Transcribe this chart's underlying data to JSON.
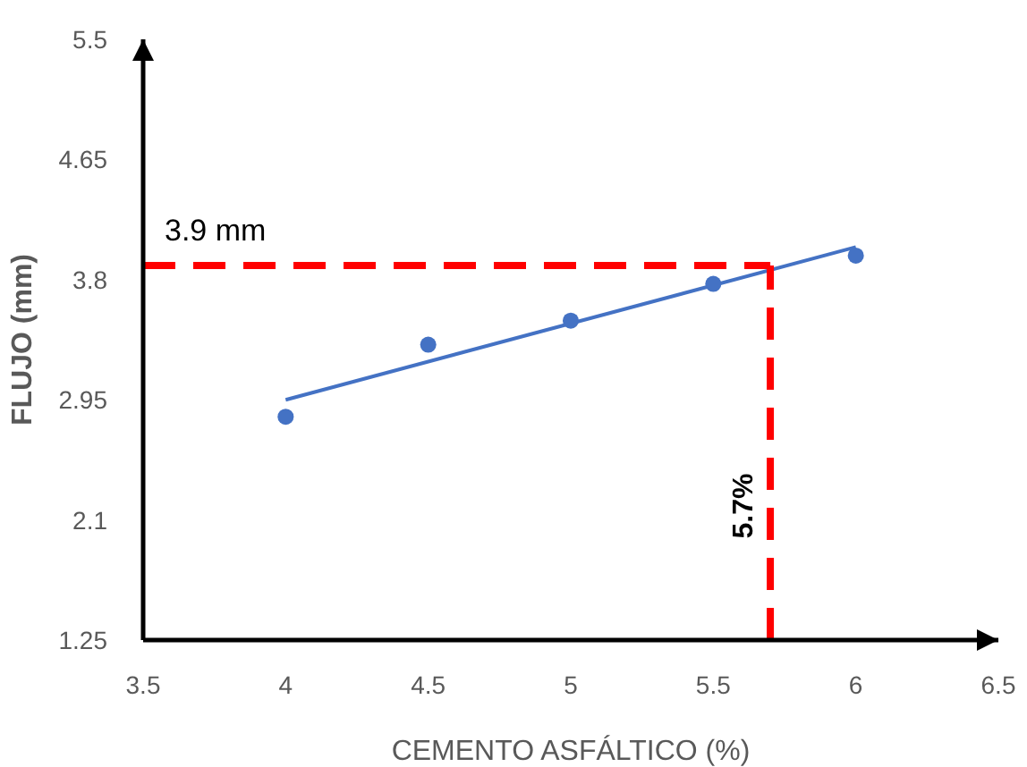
{
  "chart_data": {
    "type": "scatter",
    "xlabel": "CEMENTO ASFÁLTICO (%)",
    "ylabel": "FLUJO (mm)",
    "x": [
      4,
      4.5,
      5,
      5.5,
      6
    ],
    "series": [
      {
        "color": "#4472c4",
        "values": [
          2.83,
          3.34,
          3.51,
          3.77,
          3.97
        ]
      },
      {
        "type": "line",
        "marker": "none",
        "color": "#4472c4",
        "x": [
          4,
          6
        ],
        "values": [
          2.95,
          4.03
        ]
      }
    ],
    "xlim": [
      3.5,
      6.5
    ],
    "xticks": [
      3.5,
      4,
      4.5,
      5,
      5.5,
      6,
      6.5
    ],
    "ylim": [
      1.25,
      5.5
    ],
    "yticks": [
      1.25,
      2.1,
      2.95,
      3.8,
      4.65,
      5.5
    ],
    "ref_lines": [
      {
        "axis": "y",
        "value": 3.9,
        "label": "3.9 mm",
        "color": "#ff0000",
        "line_style": "dashed"
      },
      {
        "axis": "x",
        "value": 5.7,
        "label": "5.7%",
        "color": "#ff0000",
        "line_style": "dashed"
      }
    ],
    "grid": false,
    "marker": "circle"
  }
}
